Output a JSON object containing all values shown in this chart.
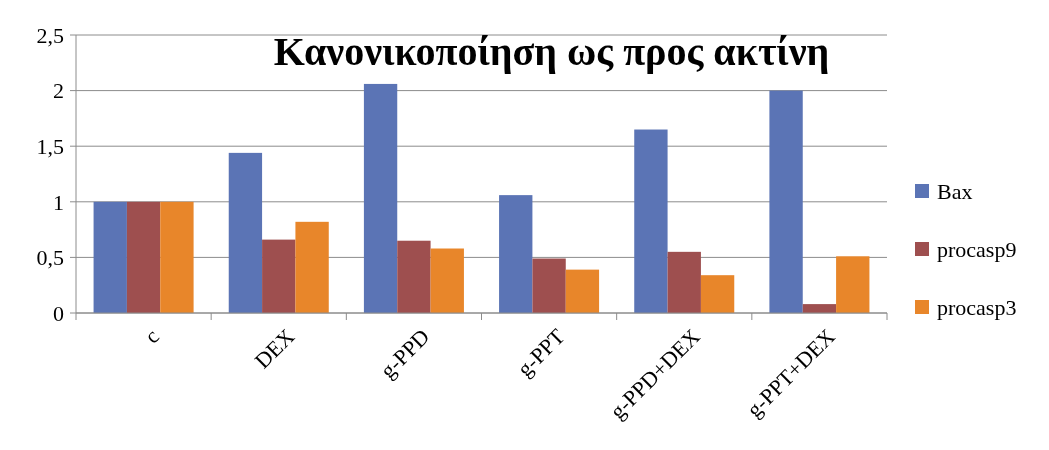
{
  "chart_data": {
    "type": "bar",
    "title": "Κανονικοποίηση ως προς ακτίνη",
    "categories": [
      "c",
      "DEX",
      "g-PPD",
      "g-PPT",
      "g-PPD+DEX",
      "g-PPT+DEX"
    ],
    "series": [
      {
        "name": "Bax",
        "color": "#5b74b5",
        "values": [
          1,
          1.44,
          2.06,
          1.06,
          1.65,
          2.0
        ]
      },
      {
        "name": "procasp9",
        "color": "#9e4f4f",
        "values": [
          1,
          0.66,
          0.65,
          0.49,
          0.55,
          0.08
        ]
      },
      {
        "name": "procasp3",
        "color": "#e8862a",
        "values": [
          1,
          0.82,
          0.58,
          0.39,
          0.34,
          0.51
        ]
      }
    ],
    "ylim": [
      0,
      2.5
    ],
    "yticks": [
      0,
      {
        "value": 0.5,
        "label": "0,5"
      },
      1,
      {
        "value": 1.5,
        "label": "1,5"
      },
      2,
      {
        "value": 2.5,
        "label": "2,5"
      }
    ],
    "grid": "y",
    "legend": "right"
  }
}
